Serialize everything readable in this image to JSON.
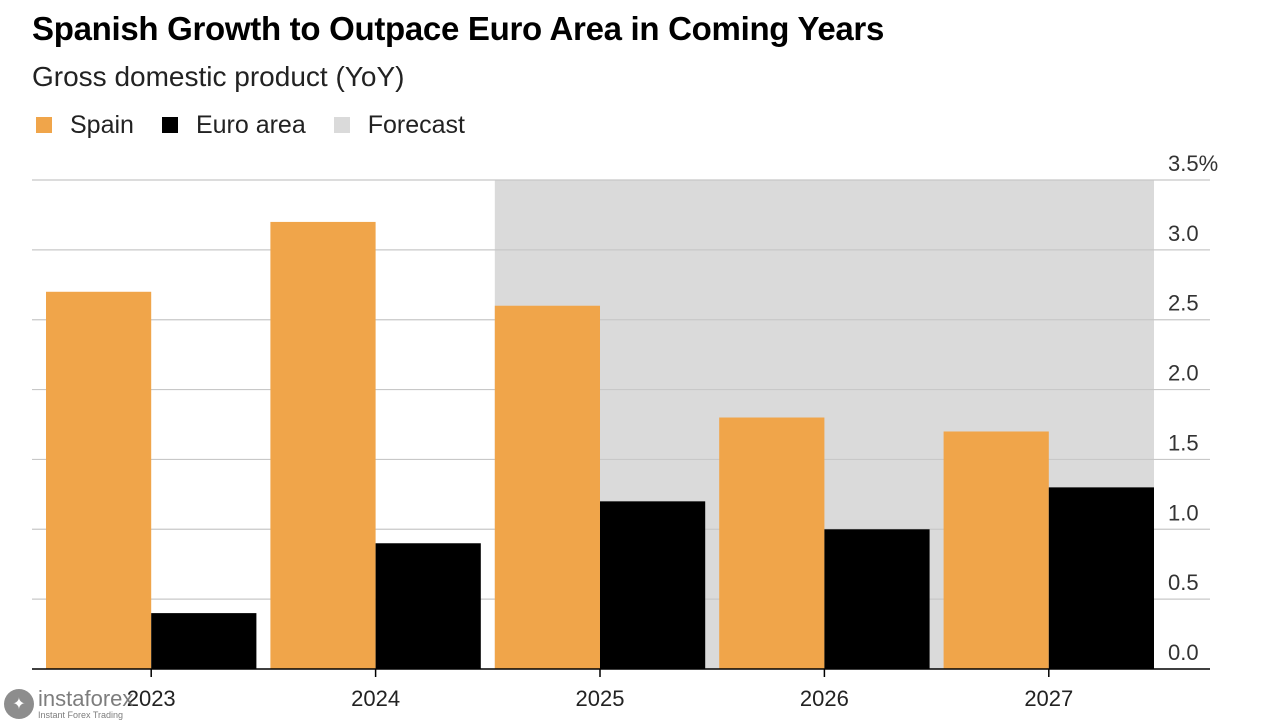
{
  "chart_data": {
    "type": "bar",
    "title": "Spanish Growth to Outpace Euro Area in Coming Years",
    "subtitle": "Gross domestic product (YoY)",
    "categories": [
      "2023",
      "2024",
      "2025",
      "2026",
      "2027"
    ],
    "series": [
      {
        "name": "Spain",
        "color": "#F0A54A",
        "values": [
          2.7,
          3.2,
          2.6,
          1.8,
          1.7
        ]
      },
      {
        "name": "Euro area",
        "color": "#000000",
        "values": [
          0.4,
          0.9,
          1.2,
          1.0,
          1.3
        ]
      }
    ],
    "forecast": {
      "label": "Forecast",
      "color": "#DADADA",
      "from_category": "2025",
      "to_category": "2027"
    },
    "ylim": [
      0,
      3.5
    ],
    "yticks": [
      0.0,
      0.5,
      1.0,
      1.5,
      2.0,
      2.5,
      3.0,
      3.5
    ],
    "ytick_labels": [
      "0.0",
      "0.5",
      "1.0",
      "1.5",
      "2.0",
      "2.5",
      "3.0",
      "3.5%"
    ],
    "yaxis_position": "right",
    "grid": true,
    "xlabel": "",
    "ylabel": ""
  },
  "watermark": {
    "name": "instaforex",
    "tagline": "Instant Forex Trading"
  }
}
